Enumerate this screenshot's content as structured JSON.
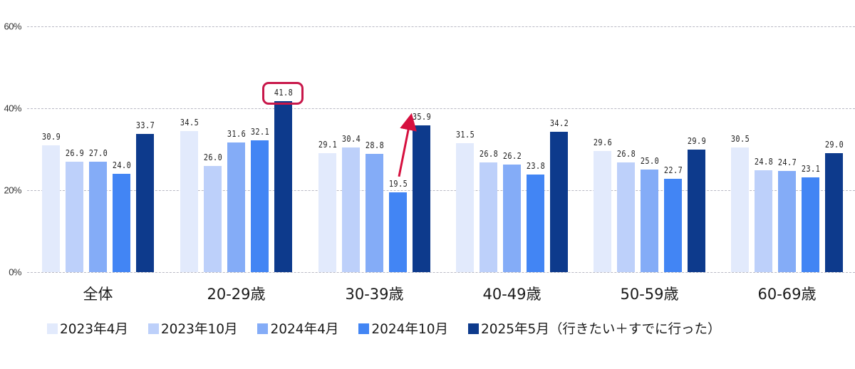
{
  "chart_data": {
    "type": "bar",
    "title": "",
    "xlabel": "",
    "ylabel": "",
    "ylim": [
      0,
      60
    ],
    "yticks": [
      "0%",
      "20%",
      "40%",
      "60%"
    ],
    "grid": true,
    "legend_position": "bottom",
    "categories": [
      "全体",
      "20-29歳",
      "30-39歳",
      "40-49歳",
      "50-59歳",
      "60-69歳"
    ],
    "series": [
      {
        "name": "2023年4月",
        "color": "#e2eafc",
        "values": [
          30.9,
          34.5,
          29.1,
          31.5,
          29.6,
          30.5
        ]
      },
      {
        "name": "2023年10月",
        "color": "#bdd0fa",
        "values": [
          26.9,
          26.0,
          30.4,
          26.8,
          26.8,
          24.8
        ]
      },
      {
        "name": "2024年4月",
        "color": "#84acf7",
        "values": [
          27.0,
          31.6,
          28.8,
          26.2,
          25.0,
          24.7
        ]
      },
      {
        "name": "2024年10月",
        "color": "#4285f4",
        "values": [
          24.0,
          32.1,
          19.5,
          23.8,
          22.7,
          23.1
        ]
      },
      {
        "name": "2025年5月（行きたい＋すでに行った）",
        "color": "#0d3a8c",
        "values": [
          33.7,
          41.8,
          35.9,
          34.2,
          29.9,
          29.0
        ]
      }
    ],
    "annotations": [
      {
        "type": "highlight-box",
        "category": "20-29歳",
        "series": "2025年5月（行きたい＋すでに行った）",
        "value": 41.8,
        "color": "#c8174a"
      },
      {
        "type": "arrow",
        "category": "30-39歳",
        "from_series": "2024年10月",
        "to_series": "2025年5月（行きたい＋すでに行った）",
        "from": 19.5,
        "to": 35.9,
        "color": "#d6103f"
      }
    ]
  },
  "labels": {
    "ytick_0": "0%",
    "ytick_20": "20%",
    "ytick_40": "40%",
    "ytick_60": "60%"
  }
}
